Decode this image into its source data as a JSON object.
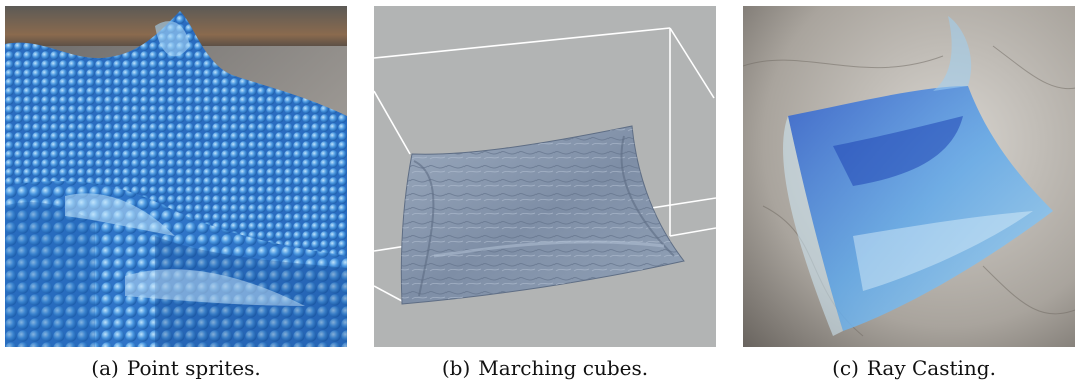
{
  "figure": {
    "panels": [
      {
        "tag": "(a)",
        "caption": "Point sprites."
      },
      {
        "tag": "(b)",
        "caption": "Marching cubes."
      },
      {
        "tag": "(c)",
        "caption": "Ray Casting."
      }
    ]
  },
  "colors": {
    "sprite_blue": "#2f7fd6",
    "sprite_light": "#8fc8f2",
    "mesh_gray": "#8a9ab0",
    "background_gray": "#b2b4b4",
    "ray_blue": "#5a9ee0"
  }
}
